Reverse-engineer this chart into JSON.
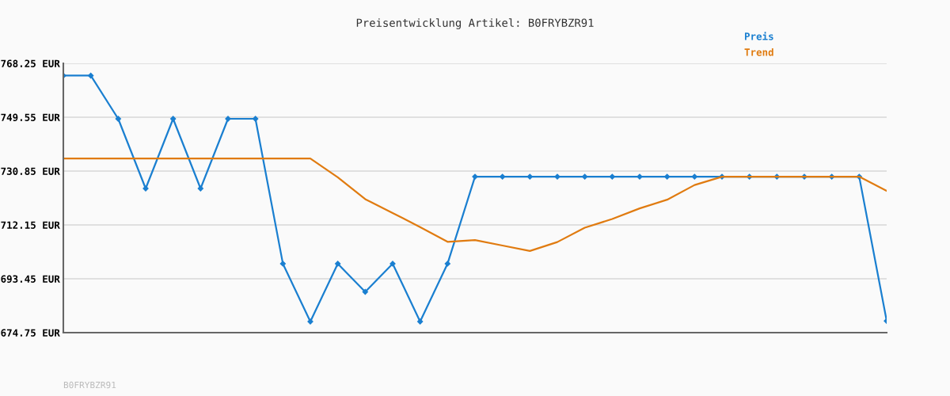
{
  "chart_data": {
    "type": "line",
    "title": "Preisentwicklung Artikel: B0FRYBZR91",
    "categories": [
      null,
      null,
      null,
      null,
      null,
      null,
      null,
      null,
      null,
      null,
      null,
      null,
      null,
      null,
      null,
      null,
      null,
      null,
      null,
      null,
      null,
      null,
      null,
      null,
      null,
      null,
      null,
      null,
      null,
      null,
      null
    ],
    "series": [
      {
        "name": "Preis",
        "color": "#1a7fd0",
        "marker": "diamond",
        "values": [
          764.0,
          764.0,
          749.0,
          724.8,
          749.0,
          724.8,
          749.0,
          749.0,
          698.7,
          678.6,
          698.7,
          688.9,
          698.7,
          678.6,
          698.7,
          728.9,
          728.9,
          728.9,
          728.9,
          728.9,
          728.9,
          728.9,
          728.9,
          728.9,
          728.9,
          728.9,
          728.9,
          728.9,
          728.9,
          728.9,
          678.8
        ]
      },
      {
        "name": "Trend",
        "color": "#e07b10",
        "marker": "none",
        "values": [
          735.2,
          735.2,
          735.2,
          735.2,
          735.2,
          735.2,
          735.2,
          735.2,
          735.2,
          735.2,
          728.7,
          721.1,
          716.3,
          711.4,
          706.3,
          706.9,
          705.0,
          703.1,
          706.2,
          711.2,
          714.2,
          717.9,
          720.9,
          726.0,
          728.9,
          728.9,
          728.9,
          728.9,
          728.9,
          728.9,
          724.0
        ]
      }
    ],
    "ylim": [
      674.75,
      768.25
    ],
    "yticks": [
      {
        "value": 674.75,
        "label": "674.75 EUR"
      },
      {
        "value": 693.45,
        "label": "693.45 EUR"
      },
      {
        "value": 712.15,
        "label": "712.15 EUR"
      },
      {
        "value": 730.85,
        "label": "730.85 EUR"
      },
      {
        "value": 749.55,
        "label": "749.55 EUR"
      },
      {
        "value": 768.25,
        "label": "768.25 EUR"
      }
    ],
    "tick_labels": "y",
    "grid": "y",
    "legend": "top right",
    "annotations": [
      "B0FRYBZR91"
    ]
  }
}
